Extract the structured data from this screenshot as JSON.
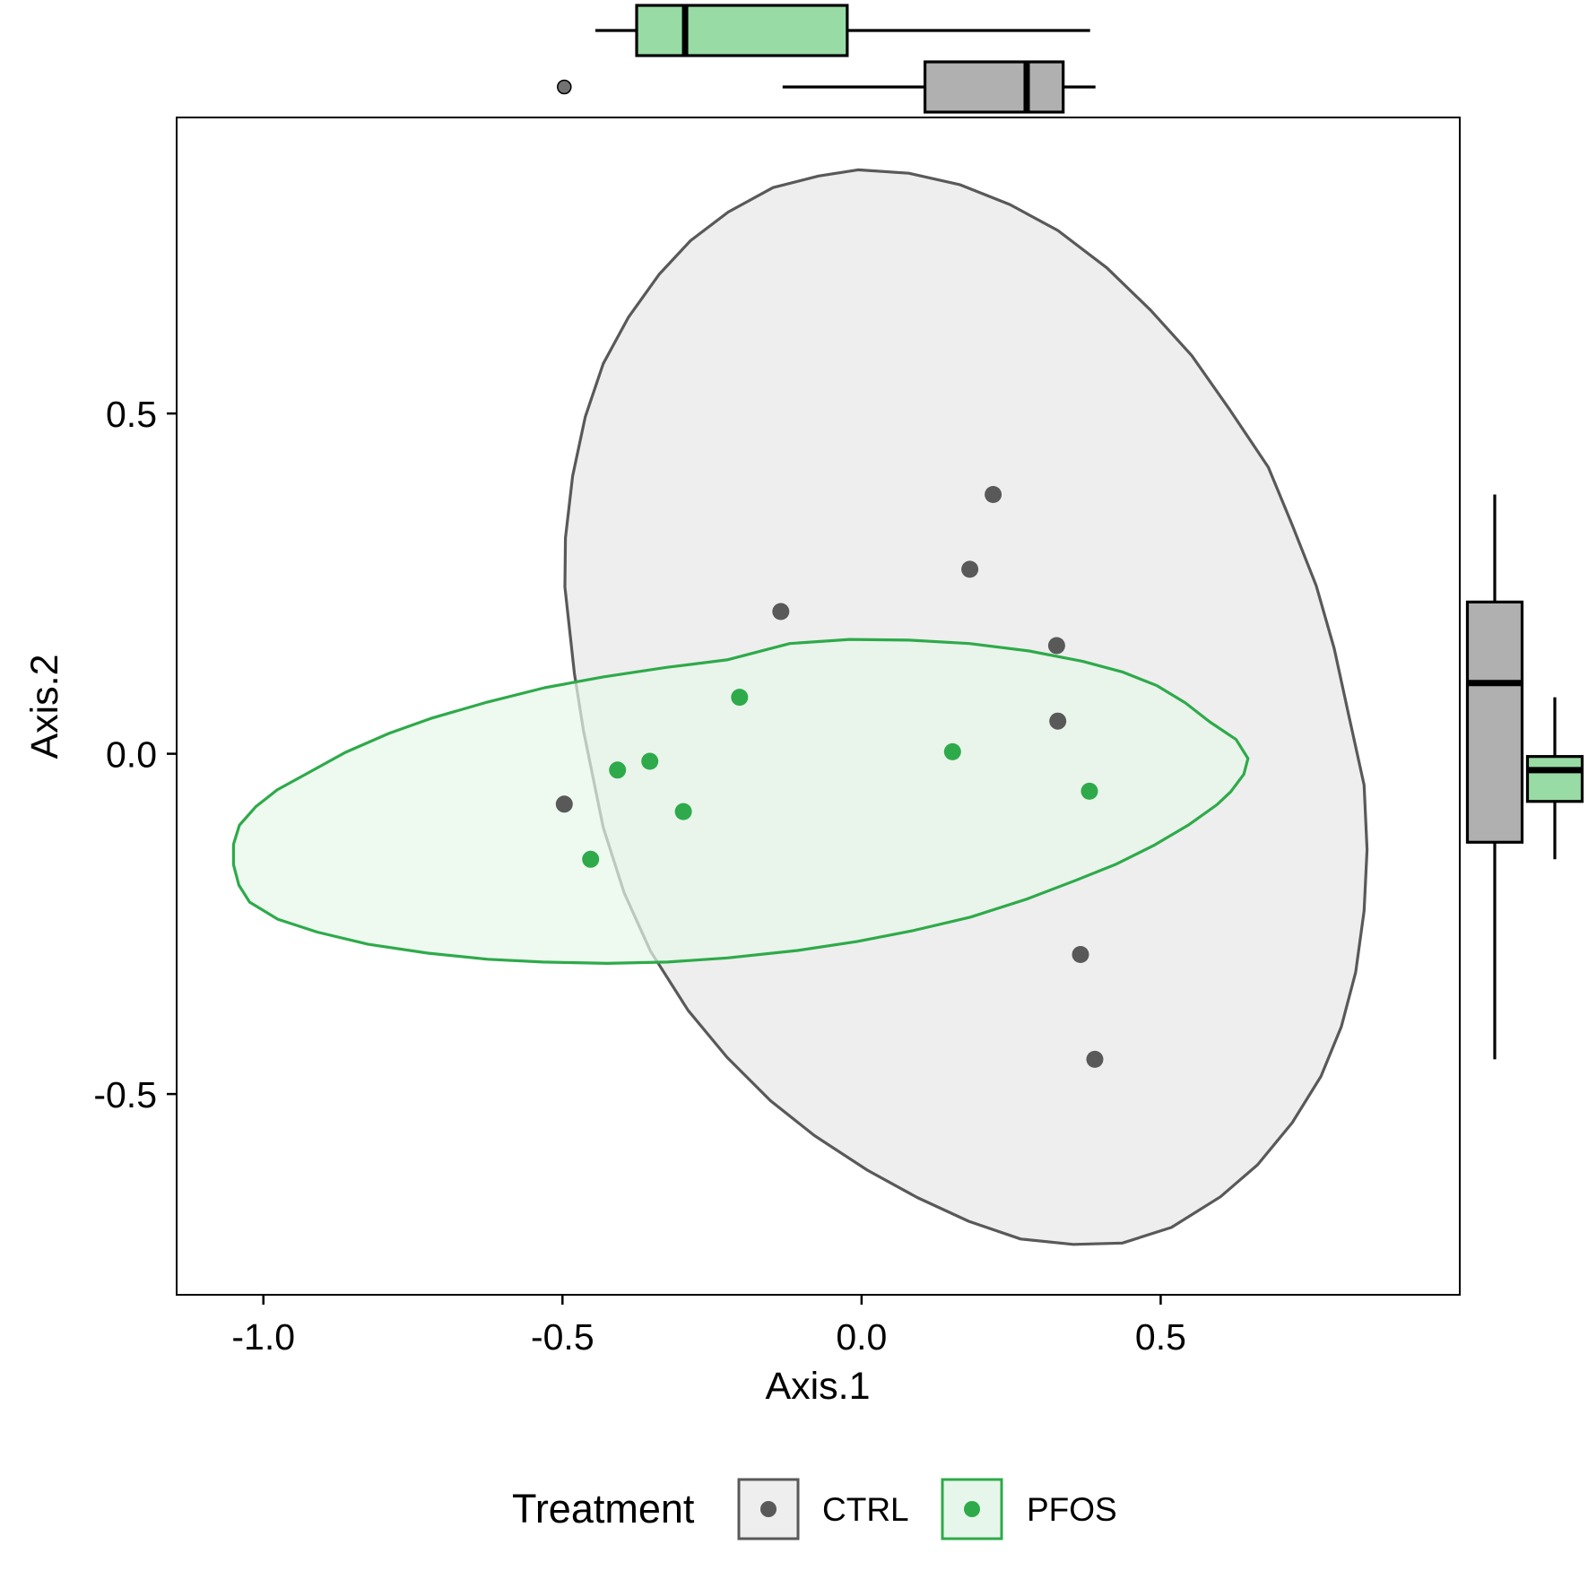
{
  "chart_data": {
    "type": "scatter",
    "xlabel": "Axis.1",
    "ylabel": "Axis.2",
    "xlim": [
      -1.145,
      1.0
    ],
    "ylim": [
      -0.795,
      0.935
    ],
    "xticks": [
      -1.0,
      -0.5,
      0.0,
      0.5
    ],
    "xtick_labels": [
      "-1.0",
      "-0.5",
      "0.0",
      "0.5"
    ],
    "yticks": [
      -0.5,
      0.0,
      0.5
    ],
    "ytick_labels": [
      "-0.5",
      "0.0",
      "0.5"
    ],
    "grid": false,
    "legend": {
      "title": "Treatment",
      "position": "bottom"
    },
    "series": [
      {
        "name": "CTRL",
        "color": "#595959",
        "fill": "#eeeeee",
        "box_fill": "#b0b0b0",
        "points": [
          {
            "x": -0.497,
            "y": -0.074
          },
          {
            "x": -0.135,
            "y": 0.209
          },
          {
            "x": 0.181,
            "y": 0.271
          },
          {
            "x": 0.22,
            "y": 0.381
          },
          {
            "x": 0.326,
            "y": 0.159
          },
          {
            "x": 0.328,
            "y": 0.048
          },
          {
            "x": 0.366,
            "y": -0.295
          },
          {
            "x": 0.39,
            "y": -0.449
          }
        ],
        "ellipse": [
          [
            -0.006,
            0.858
          ],
          [
            0.079,
            0.853
          ],
          [
            0.165,
            0.836
          ],
          [
            0.248,
            0.807
          ],
          [
            0.328,
            0.769
          ],
          [
            0.41,
            0.714
          ],
          [
            0.483,
            0.652
          ],
          [
            0.552,
            0.585
          ],
          [
            0.615,
            0.506
          ],
          [
            0.68,
            0.421
          ],
          [
            0.72,
            0.336
          ],
          [
            0.76,
            0.247
          ],
          [
            0.79,
            0.155
          ],
          [
            0.815,
            0.054
          ],
          [
            0.84,
            -0.046
          ],
          [
            0.845,
            -0.141
          ],
          [
            0.84,
            -0.231
          ],
          [
            0.826,
            -0.321
          ],
          [
            0.802,
            -0.401
          ],
          [
            0.768,
            -0.474
          ],
          [
            0.72,
            -0.542
          ],
          [
            0.662,
            -0.604
          ],
          [
            0.6,
            -0.651
          ],
          [
            0.518,
            -0.696
          ],
          [
            0.436,
            -0.719
          ],
          [
            0.354,
            -0.721
          ],
          [
            0.266,
            -0.713
          ],
          [
            0.179,
            -0.687
          ],
          [
            0.093,
            -0.652
          ],
          [
            0.01,
            -0.612
          ],
          [
            -0.079,
            -0.561
          ],
          [
            -0.152,
            -0.51
          ],
          [
            -0.225,
            -0.446
          ],
          [
            -0.29,
            -0.377
          ],
          [
            -0.353,
            -0.29
          ],
          [
            -0.397,
            -0.204
          ],
          [
            -0.432,
            -0.108
          ],
          [
            -0.465,
            0.034
          ],
          [
            -0.48,
            0.118
          ],
          [
            -0.496,
            0.245
          ],
          [
            -0.495,
            0.317
          ],
          [
            -0.483,
            0.408
          ],
          [
            -0.462,
            0.495
          ],
          [
            -0.432,
            0.573
          ],
          [
            -0.39,
            0.641
          ],
          [
            -0.338,
            0.705
          ],
          [
            -0.286,
            0.754
          ],
          [
            -0.223,
            0.796
          ],
          [
            -0.148,
            0.832
          ],
          [
            -0.072,
            0.849
          ]
        ]
      },
      {
        "name": "PFOS",
        "color": "#2eaa4a",
        "fill": "#e7f6ea",
        "box_fill": "#99dba5",
        "points": [
          {
            "x": -0.453,
            "y": -0.155
          },
          {
            "x": -0.408,
            "y": -0.024
          },
          {
            "x": -0.354,
            "y": -0.011
          },
          {
            "x": -0.298,
            "y": -0.085
          },
          {
            "x": -0.204,
            "y": 0.083
          },
          {
            "x": 0.152,
            "y": 0.003
          },
          {
            "x": 0.381,
            "y": -0.055
          }
        ],
        "ellipse": [
          [
            -0.02,
            0.168
          ],
          [
            0.08,
            0.167
          ],
          [
            0.18,
            0.162
          ],
          [
            0.28,
            0.151
          ],
          [
            0.369,
            0.136
          ],
          [
            0.437,
            0.12
          ],
          [
            0.494,
            0.1
          ],
          [
            0.541,
            0.075
          ],
          [
            0.582,
            0.047
          ],
          [
            0.626,
            0.021
          ],
          [
            0.646,
            -0.007
          ],
          [
            0.639,
            -0.03
          ],
          [
            0.617,
            -0.056
          ],
          [
            0.594,
            -0.075
          ],
          [
            0.546,
            -0.105
          ],
          [
            0.49,
            -0.134
          ],
          [
            0.426,
            -0.162
          ],
          [
            0.358,
            -0.186
          ],
          [
            0.278,
            -0.213
          ],
          [
            0.182,
            -0.24
          ],
          [
            0.085,
            -0.26
          ],
          [
            -0.008,
            -0.276
          ],
          [
            -0.107,
            -0.289
          ],
          [
            -0.224,
            -0.3
          ],
          [
            -0.324,
            -0.306
          ],
          [
            -0.425,
            -0.308
          ],
          [
            -0.533,
            -0.306
          ],
          [
            -0.625,
            -0.302
          ],
          [
            -0.725,
            -0.293
          ],
          [
            -0.825,
            -0.28
          ],
          [
            -0.91,
            -0.262
          ],
          [
            -0.976,
            -0.243
          ],
          [
            -1.023,
            -0.218
          ],
          [
            -1.041,
            -0.193
          ],
          [
            -1.05,
            -0.163
          ],
          [
            -1.05,
            -0.133
          ],
          [
            -1.04,
            -0.105
          ],
          [
            -1.013,
            -0.078
          ],
          [
            -0.977,
            -0.053
          ],
          [
            -0.925,
            -0.028
          ],
          [
            -0.863,
            0.002
          ],
          [
            -0.79,
            0.03
          ],
          [
            -0.72,
            0.052
          ],
          [
            -0.625,
            0.076
          ],
          [
            -0.53,
            0.097
          ],
          [
            -0.432,
            0.113
          ],
          [
            -0.325,
            0.127
          ],
          [
            -0.225,
            0.138
          ],
          [
            -0.12,
            0.162
          ]
        ]
      }
    ],
    "marginal_boxplots": {
      "x": [
        {
          "series": "PFOS",
          "whisker_low": -0.445,
          "q1": -0.376,
          "median": -0.295,
          "q3": -0.024,
          "whisker_high": 0.382,
          "outliers": []
        },
        {
          "series": "CTRL",
          "whisker_low": -0.132,
          "q1": 0.106,
          "median": 0.276,
          "q3": 0.337,
          "whisker_high": 0.391,
          "outliers": [
            -0.497
          ]
        }
      ],
      "y": [
        {
          "series": "CTRL",
          "whisker_low": -0.449,
          "q1": -0.13,
          "median": 0.104,
          "q3": 0.223,
          "whisker_high": 0.381,
          "outliers": []
        },
        {
          "series": "PFOS",
          "whisker_low": -0.155,
          "q1": -0.07,
          "median": -0.024,
          "q3": -0.004,
          "whisker_high": 0.083,
          "outliers": []
        }
      ]
    }
  }
}
